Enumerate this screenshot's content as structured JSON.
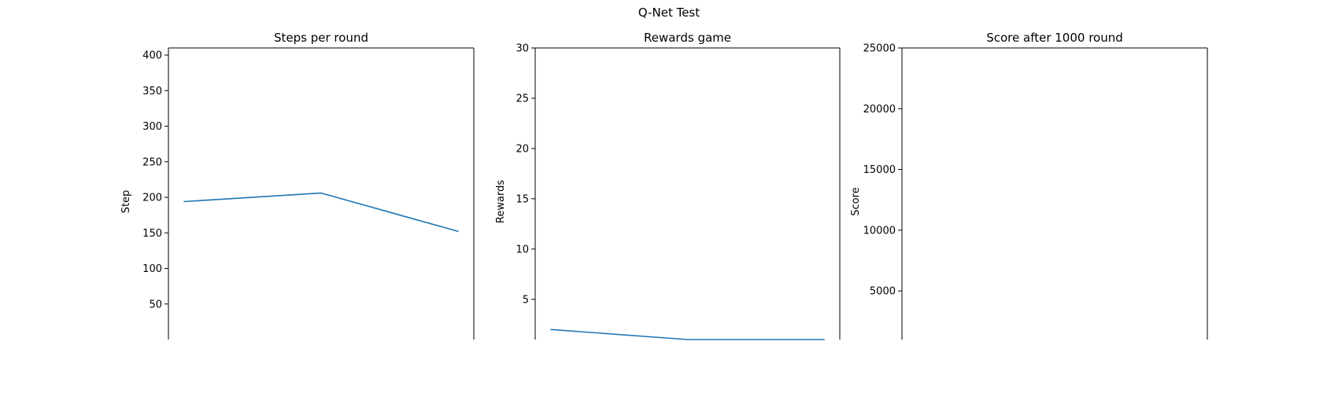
{
  "figure": {
    "suptitle": "Q-Net Test"
  },
  "chart_data": [
    {
      "type": "line",
      "title": "Steps per round",
      "xlabel": "",
      "ylabel": "Step",
      "ylim": [
        0,
        410
      ],
      "yticks": [
        50,
        100,
        150,
        200,
        250,
        300,
        350,
        400
      ],
      "ytick_labels": [
        "50",
        "100",
        "150",
        "200",
        "250",
        "300",
        "350",
        "400"
      ],
      "x": [
        0,
        1,
        2
      ],
      "series": [
        {
          "values": [
            194,
            206,
            152
          ],
          "color": "#1f77b4"
        }
      ],
      "grid": false
    },
    {
      "type": "line",
      "title": "Rewards game",
      "xlabel": "",
      "ylabel": "Rewards",
      "ylim": [
        1,
        30
      ],
      "yticks": [
        5,
        10,
        15,
        20,
        25,
        30
      ],
      "ytick_labels": [
        "5",
        "10",
        "15",
        "20",
        "25",
        "30"
      ],
      "x": [
        0,
        1,
        2
      ],
      "series": [
        {
          "values": [
            2,
            1,
            1
          ],
          "color": "#1f77b4"
        }
      ],
      "grid": false
    },
    {
      "type": "line",
      "title": "Score after 1000 round",
      "xlabel": "",
      "ylabel": "Score",
      "ylim": [
        1000,
        25000
      ],
      "yticks": [
        5000,
        10000,
        15000,
        20000,
        25000
      ],
      "ytick_labels": [
        "5000",
        "10000",
        "15000",
        "20000",
        "25000"
      ],
      "x": [],
      "series": [
        {
          "values": [],
          "color": "#1f77b4"
        }
      ],
      "grid": false
    }
  ]
}
